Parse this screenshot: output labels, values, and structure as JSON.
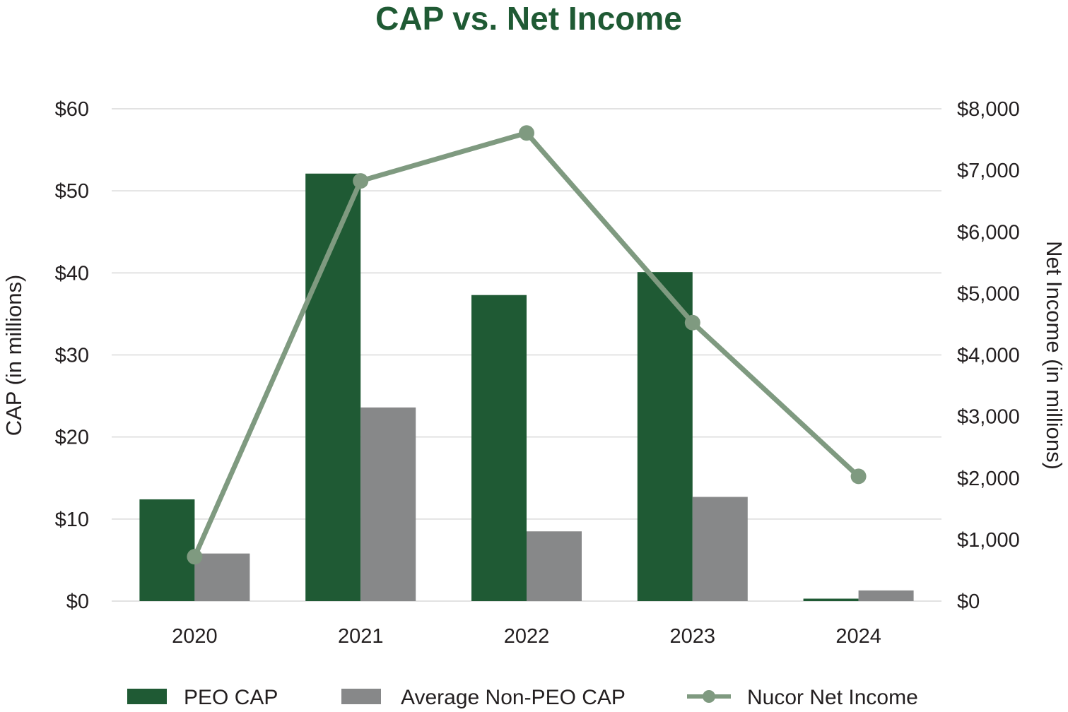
{
  "chart_data": {
    "type": "bar",
    "title": "CAP vs. Net Income",
    "categories": [
      "2020",
      "2021",
      "2022",
      "2023",
      "2024"
    ],
    "series": [
      {
        "name": "PEO CAP",
        "kind": "bar",
        "axis": "left",
        "color": "#1f5a34",
        "values": [
          12.4,
          52.1,
          37.3,
          40.1,
          0.3
        ]
      },
      {
        "name": "Average Non-PEO CAP",
        "kind": "bar",
        "axis": "left",
        "color": "#878889",
        "values": [
          5.8,
          23.6,
          8.5,
          12.7,
          1.3
        ]
      },
      {
        "name": "Nucor Net Income",
        "kind": "line",
        "axis": "right",
        "color": "#7f9a80",
        "values": [
          721,
          6828,
          7607,
          4525,
          2027
        ]
      }
    ],
    "ylabel": "CAP (in millions)",
    "y2label": "Net Income (in millions)",
    "ylim": [
      0,
      60
    ],
    "y2lim": [
      0,
      8000
    ],
    "yticks": [
      "$0",
      "$10",
      "$20",
      "$30",
      "$40",
      "$50",
      "$60"
    ],
    "y2ticks": [
      "$0",
      "$1,000",
      "$2,000",
      "$3,000",
      "$4,000",
      "$5,000",
      "$6,000",
      "$7,000",
      "$8,000"
    ],
    "grid": true,
    "legend_position": "bottom",
    "title_color": "#1f5a34",
    "gridline_color": "#d9d9d9"
  }
}
